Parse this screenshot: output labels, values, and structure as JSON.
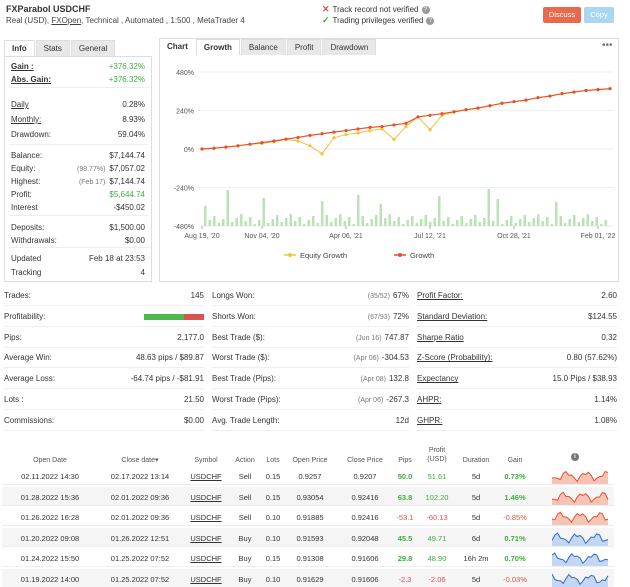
{
  "header": {
    "title": "FXParabol USDCHF",
    "sub_prefix": "Real (USD), ",
    "broker": "FXOpen",
    "sub_suffix": ", Technical , Automated , 1:500 , MetaTrader 4",
    "track_record": "Track record not verified",
    "trading_privileges": "Trading privileges verified",
    "discuss_label": "Discuss",
    "copy_label": "Copy"
  },
  "colors": {
    "discuss": "#e9694c",
    "copy": "#a9d6f0",
    "growth": "#e8502a",
    "equity": "#f2c23a",
    "bars": "#b9e3b5",
    "green": "#3cae3c",
    "red": "#d9534f"
  },
  "info": {
    "tabs": [
      "Info",
      "Stats",
      "General"
    ],
    "rows": [
      {
        "k": "Gain :",
        "v": "+376.32%",
        "sub": ""
      },
      {
        "k": "Abs. Gain:",
        "v": "+376.32%",
        "sub": ""
      },
      {
        "k": "Daily",
        "v": "0.28%",
        "sub": ""
      },
      {
        "k": "Monthly:",
        "v": "8.93%",
        "sub": ""
      },
      {
        "k": "Drawdown:",
        "v": "59.04%",
        "sub": ""
      },
      {
        "k": "Balance:",
        "v": "$7,144.74",
        "sub": ""
      },
      {
        "k": "Equity:",
        "v": "$7,057.02",
        "sub": "(98.77%)"
      },
      {
        "k": "Highest:",
        "v": "$7,144.74",
        "sub": "(Feb 17)"
      },
      {
        "k": "Profit:",
        "v": "$5,644.74",
        "sub": ""
      },
      {
        "k": "Interest",
        "v": "-$450.02",
        "sub": ""
      },
      {
        "k": "Deposits:",
        "v": "$1,500.00",
        "sub": ""
      },
      {
        "k": "Withdrawals:",
        "v": "$0.00",
        "sub": ""
      },
      {
        "k": "Updated",
        "v": "Feb 18 at 23:53",
        "sub": ""
      },
      {
        "k": "Tracking",
        "v": "4",
        "sub": ""
      }
    ]
  },
  "chart_panel": {
    "tabs": [
      "Chart",
      "Growth",
      "Balance",
      "Profit",
      "Drawdown"
    ],
    "menu_icon": "more-icon"
  },
  "chart_data": {
    "type": "line",
    "x_ticks": [
      "Aug 19, '20",
      "Nov 04, '20",
      "Apr 06, '21",
      "Jul 12, '21",
      "Oct 28, '21",
      "Feb 01, '22"
    ],
    "y_ticks": [
      "480%",
      "240%",
      "0%",
      "-240%",
      "-480%"
    ],
    "ylim": [
      -480,
      480
    ],
    "series": [
      {
        "name": "Equity Growth",
        "values": [
          0,
          5,
          12,
          20,
          30,
          35,
          45,
          60,
          50,
          20,
          -30,
          70,
          90,
          100,
          115,
          125,
          60,
          140,
          200,
          120,
          210,
          230,
          245,
          255,
          270,
          285,
          295,
          305,
          320,
          330,
          345,
          355,
          365,
          370,
          376
        ]
      },
      {
        "name": "Growth",
        "values": [
          0,
          5,
          12,
          20,
          30,
          40,
          50,
          62,
          72,
          85,
          95,
          105,
          115,
          125,
          135,
          140,
          150,
          160,
          200,
          210,
          220,
          232,
          245,
          255,
          270,
          285,
          295,
          305,
          320,
          330,
          345,
          355,
          365,
          370,
          376
        ]
      }
    ]
  },
  "stats": {
    "col1": [
      {
        "k": "Trades:",
        "v": "145",
        "sub": ""
      },
      {
        "k": "Profitability:",
        "v": "",
        "sub": ""
      },
      {
        "k": "Pips:",
        "v": "2,177.0",
        "sub": ""
      },
      {
        "k": "Average Win:",
        "v": "48.63 pips / $89.87",
        "sub": ""
      },
      {
        "k": "Average Loss:",
        "v": "-64.74 pips / -$81.91",
        "sub": ""
      },
      {
        "k": "Lots :",
        "v": "21.50",
        "sub": ""
      },
      {
        "k": "Commissions:",
        "v": "$0.00",
        "sub": ""
      }
    ],
    "profitability_win": 0.67,
    "col2": [
      {
        "k": "Longs Won:",
        "v": "67%",
        "sub": "(35/52)"
      },
      {
        "k": "Shorts Won:",
        "v": "72%",
        "sub": "(67/93)"
      },
      {
        "k": "Best Trade ($):",
        "v": "747.87",
        "sub": "(Jun 16)"
      },
      {
        "k": "Worst Trade ($):",
        "v": "-304.53",
        "sub": "(Apr 06)"
      },
      {
        "k": "Best Trade (Pips):",
        "v": "132.8",
        "sub": "(Apr 08)"
      },
      {
        "k": "Worst Trade (Pips):",
        "v": "-267.3",
        "sub": "(Apr 06)"
      },
      {
        "k": "Avg. Trade Length:",
        "v": "12d",
        "sub": ""
      }
    ],
    "col3": [
      {
        "k": "Profit Factor:",
        "v": "2.60",
        "sub": ""
      },
      {
        "k": "Standard Deviation:",
        "v": "$124.55",
        "sub": ""
      },
      {
        "k": "Sharpe Ratio",
        "v": "0.32",
        "sub": ""
      },
      {
        "k": "Z-Score (Probability):",
        "v": "0.80 (57.62%)",
        "sub": ""
      },
      {
        "k": "Expectancy",
        "v": "15.0 Pips / $38.93",
        "sub": ""
      },
      {
        "k": "AHPR:",
        "v": "1.14%",
        "sub": ""
      },
      {
        "k": "GHPR:",
        "v": "1.08%",
        "sub": ""
      }
    ]
  },
  "trades": {
    "headers": [
      "Open Date",
      "Close date▾",
      "Symbol",
      "Action",
      "Lots",
      "Open Price",
      "Close Price",
      "Pips",
      "Profit (USD)",
      "Duration",
      "Gain"
    ],
    "rows": [
      [
        "02.11.2022 14:30",
        "02.17.2022 13:14",
        "USDCHF",
        "Sell",
        "0.15",
        "0.9257",
        "0.9207",
        "50.0",
        "51.61",
        "5d",
        "0.73%"
      ],
      [
        "01.28.2022 15:36",
        "02.01.2022 09:36",
        "USDCHF",
        "Sell",
        "0.15",
        "0.93054",
        "0.92416",
        "63.8",
        "102.20",
        "5d",
        "1.46%"
      ],
      [
        "01.26.2022 16:28",
        "02.01.2022 09:36",
        "USDCHF",
        "Sell",
        "0.10",
        "0.91885",
        "0.92416",
        "-53.1",
        "-60.13",
        "5d",
        "-0.85%"
      ],
      [
        "01.20.2022 09:08",
        "01.26.2022 12:51",
        "USDCHF",
        "Buy",
        "0.10",
        "0.91593",
        "0.92048",
        "45.5",
        "49.71",
        "6d",
        "0.71%"
      ],
      [
        "01.24.2022 15:50",
        "01.25.2022 07:52",
        "USDCHF",
        "Buy",
        "0.15",
        "0.91308",
        "0.91606",
        "29.8",
        "48.90",
        "16h 2m",
        "0.70%"
      ],
      [
        "01.19.2022 14:00",
        "01.25.2022 07:52",
        "USDCHF",
        "Buy",
        "0.10",
        "0.91629",
        "0.91606",
        "-2.3",
        "-2.06",
        "5d",
        "-0.03%"
      ]
    ],
    "sparks": [
      "red",
      "red",
      "red",
      "blue",
      "blue",
      "blue"
    ]
  }
}
